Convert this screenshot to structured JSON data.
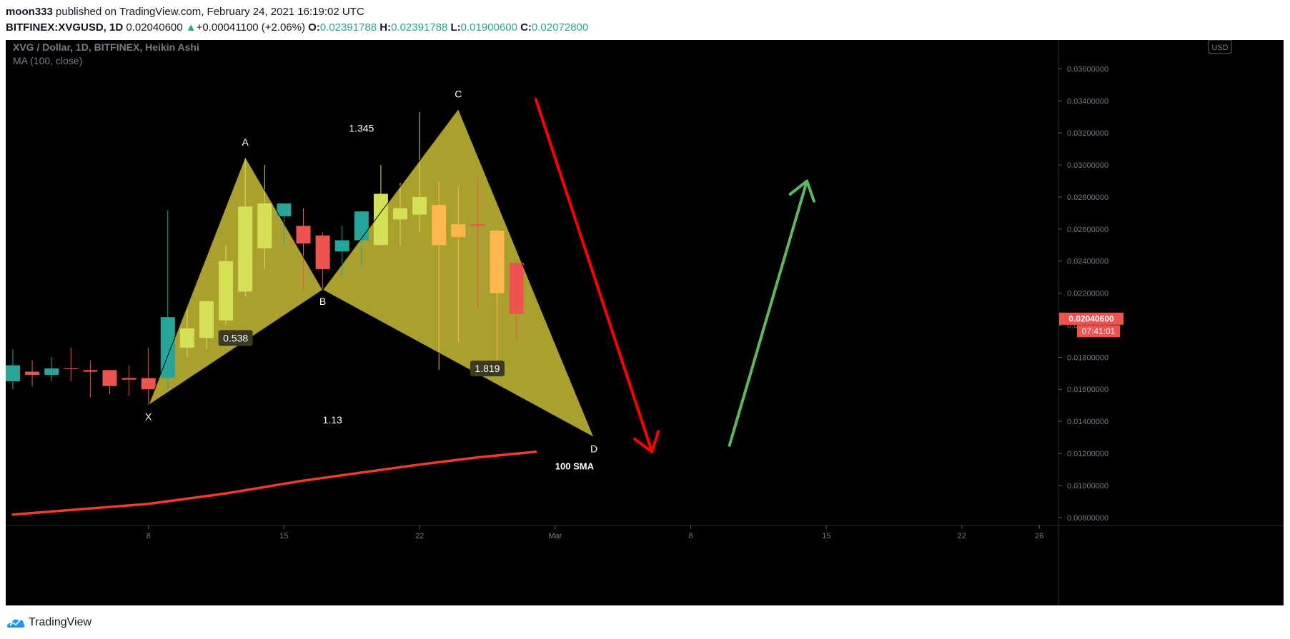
{
  "header": {
    "publisher": "moon333",
    "published_text": " published on TradingView.com, February 24, 2021 16:19:02 UTC",
    "symbol": "BITFINEX:XVGUSD, 1D",
    "last": "0.02040600",
    "change_arrow": "▲",
    "change": "+0.00041100 (+2.06%)",
    "o_label": "O:",
    "o": "0.02391788",
    "h_label": "H:",
    "h": "0.02391788",
    "l_label": "L:",
    "l": "0.01900600",
    "c_label": "C:",
    "c": "0.02072800"
  },
  "legend": {
    "series_title": "XVG / Dollar, 1D, BITFINEX, Heikin Ashi",
    "indicator": "MA (100, close)"
  },
  "currency_badge": "USD",
  "price_tag": {
    "price": "0.02040600",
    "countdown": "07:41:01"
  },
  "footer": {
    "brand": "TradingView"
  },
  "colors": {
    "up": "#26a69a",
    "down": "#ef5350",
    "pattern_fill": "#d4c83a",
    "pattern_bull": "#d4e157",
    "pattern_bear": "#ffb74d",
    "sma": "#f23c2a",
    "arrow_down": "#ff0000",
    "arrow_up": "#5fb85f",
    "axis_text": "#787b86",
    "background": "#000000"
  },
  "chart_data": {
    "type": "candlestick",
    "style": "Heikin Ashi",
    "ylim": [
      0.0075,
      0.0378
    ],
    "y_ticks": [
      "0.00800000",
      "0.01000000",
      "0.01200000",
      "0.01400000",
      "0.01600000",
      "0.01800000",
      "0.02000000",
      "0.02200000",
      "0.02400000",
      "0.02600000",
      "0.02800000",
      "0.03000000",
      "0.03200000",
      "0.03400000",
      "0.03600000"
    ],
    "x_ticks": [
      {
        "label": "8",
        "day": 8
      },
      {
        "label": "15",
        "day": 15
      },
      {
        "label": "22",
        "day": 22
      },
      {
        "label": "Mar",
        "day": 29
      },
      {
        "label": "8",
        "day": 36
      },
      {
        "label": "15",
        "day": 43
      },
      {
        "label": "22",
        "day": 50
      },
      {
        "label": "26",
        "day": 54
      }
    ],
    "candles": [
      {
        "day": 1,
        "o": 0.0165,
        "h": 0.0185,
        "l": 0.016,
        "c": 0.0175,
        "color": "up"
      },
      {
        "day": 2,
        "o": 0.0171,
        "h": 0.0178,
        "l": 0.0162,
        "c": 0.0169,
        "color": "down"
      },
      {
        "day": 3,
        "o": 0.0169,
        "h": 0.018,
        "l": 0.0165,
        "c": 0.0173,
        "color": "up"
      },
      {
        "day": 4,
        "o": 0.0173,
        "h": 0.0186,
        "l": 0.0165,
        "c": 0.0173,
        "color": "down"
      },
      {
        "day": 5,
        "o": 0.0172,
        "h": 0.0178,
        "l": 0.0155,
        "c": 0.0171,
        "color": "down"
      },
      {
        "day": 6,
        "o": 0.0172,
        "h": 0.0172,
        "l": 0.0157,
        "c": 0.0162,
        "color": "down"
      },
      {
        "day": 7,
        "o": 0.0167,
        "h": 0.0175,
        "l": 0.0156,
        "c": 0.0166,
        "color": "down"
      },
      {
        "day": 8,
        "o": 0.016,
        "h": 0.0186,
        "l": 0.015,
        "c": 0.0167,
        "color": "down"
      },
      {
        "day": 9,
        "o": 0.0167,
        "h": 0.0272,
        "l": 0.016,
        "c": 0.0205,
        "color": "up"
      },
      {
        "day": 10,
        "o": 0.0186,
        "h": 0.021,
        "l": 0.018,
        "c": 0.0198,
        "color": "bull"
      },
      {
        "day": 11,
        "o": 0.0192,
        "h": 0.0215,
        "l": 0.0185,
        "c": 0.0215,
        "color": "bull"
      },
      {
        "day": 12,
        "o": 0.0203,
        "h": 0.025,
        "l": 0.02,
        "c": 0.024,
        "color": "bull"
      },
      {
        "day": 13,
        "o": 0.0221,
        "h": 0.0305,
        "l": 0.0218,
        "c": 0.0274,
        "color": "bull"
      },
      {
        "day": 14,
        "o": 0.0248,
        "h": 0.03,
        "l": 0.0235,
        "c": 0.0276,
        "color": "bull"
      },
      {
        "day": 15,
        "o": 0.0276,
        "h": 0.0276,
        "l": 0.025,
        "c": 0.0268,
        "color": "up"
      },
      {
        "day": 16,
        "o": 0.0262,
        "h": 0.0273,
        "l": 0.0222,
        "c": 0.0251,
        "color": "down"
      },
      {
        "day": 17,
        "o": 0.0256,
        "h": 0.0258,
        "l": 0.0222,
        "c": 0.0235,
        "color": "down"
      },
      {
        "day": 18,
        "o": 0.0246,
        "h": 0.0262,
        "l": 0.0231,
        "c": 0.0253,
        "color": "up"
      },
      {
        "day": 19,
        "o": 0.0253,
        "h": 0.0271,
        "l": 0.0236,
        "c": 0.0271,
        "color": "up"
      },
      {
        "day": 20,
        "o": 0.025,
        "h": 0.03,
        "l": 0.025,
        "c": 0.0282,
        "color": "bull"
      },
      {
        "day": 21,
        "o": 0.0266,
        "h": 0.0289,
        "l": 0.025,
        "c": 0.0273,
        "color": "bull"
      },
      {
        "day": 22,
        "o": 0.0269,
        "h": 0.0333,
        "l": 0.0258,
        "c": 0.028,
        "color": "bull"
      },
      {
        "day": 23,
        "o": 0.0275,
        "h": 0.029,
        "l": 0.0172,
        "c": 0.025,
        "color": "bear"
      },
      {
        "day": 24,
        "o": 0.0263,
        "h": 0.0287,
        "l": 0.019,
        "c": 0.0255,
        "color": "bear"
      },
      {
        "day": 25,
        "o": 0.0263,
        "h": 0.0293,
        "l": 0.021,
        "c": 0.0262,
        "color": "down"
      },
      {
        "day": 26,
        "o": 0.0259,
        "h": 0.026,
        "l": 0.0168,
        "c": 0.022,
        "color": "bear"
      },
      {
        "day": 27,
        "o": 0.0239,
        "h": 0.0239,
        "l": 0.019,
        "c": 0.0207,
        "color": "down"
      }
    ],
    "sma100": [
      {
        "day": 1,
        "v": 0.00818
      },
      {
        "day": 8,
        "v": 0.00885
      },
      {
        "day": 12,
        "v": 0.0095
      },
      {
        "day": 16,
        "v": 0.0103
      },
      {
        "day": 19,
        "v": 0.0108
      },
      {
        "day": 22,
        "v": 0.0113
      },
      {
        "day": 25,
        "v": 0.01175
      },
      {
        "day": 28,
        "v": 0.0121
      }
    ],
    "pattern": {
      "points": [
        {
          "label": "X",
          "day": 8,
          "v": 0.015
        },
        {
          "label": "A",
          "day": 13,
          "v": 0.0305
        },
        {
          "label": "B",
          "day": 17,
          "v": 0.0222
        },
        {
          "label": "C",
          "day": 24,
          "v": 0.0335
        },
        {
          "label": "D",
          "day": 31,
          "v": 0.013
        }
      ],
      "ratios": [
        {
          "text": "0.538",
          "day": 12.5,
          "v": 0.0192,
          "boxed": true
        },
        {
          "text": "1.345",
          "day": 19,
          "v": 0.0323,
          "boxed": false
        },
        {
          "text": "1.819",
          "day": 25.5,
          "v": 0.0173,
          "boxed": true
        },
        {
          "text": "1.13",
          "day": 17.5,
          "v": 0.0141,
          "boxed": false
        }
      ]
    },
    "annotations": [
      {
        "text": "100 SMA",
        "day": 30,
        "v": 0.011
      }
    ],
    "arrows": [
      {
        "kind": "down",
        "from": {
          "day": 28,
          "v": 0.0341
        },
        "to": {
          "day": 34,
          "v": 0.0121
        }
      },
      {
        "kind": "up",
        "from": {
          "day": 38,
          "v": 0.0125
        },
        "to": {
          "day": 42,
          "v": 0.029
        }
      }
    ]
  }
}
